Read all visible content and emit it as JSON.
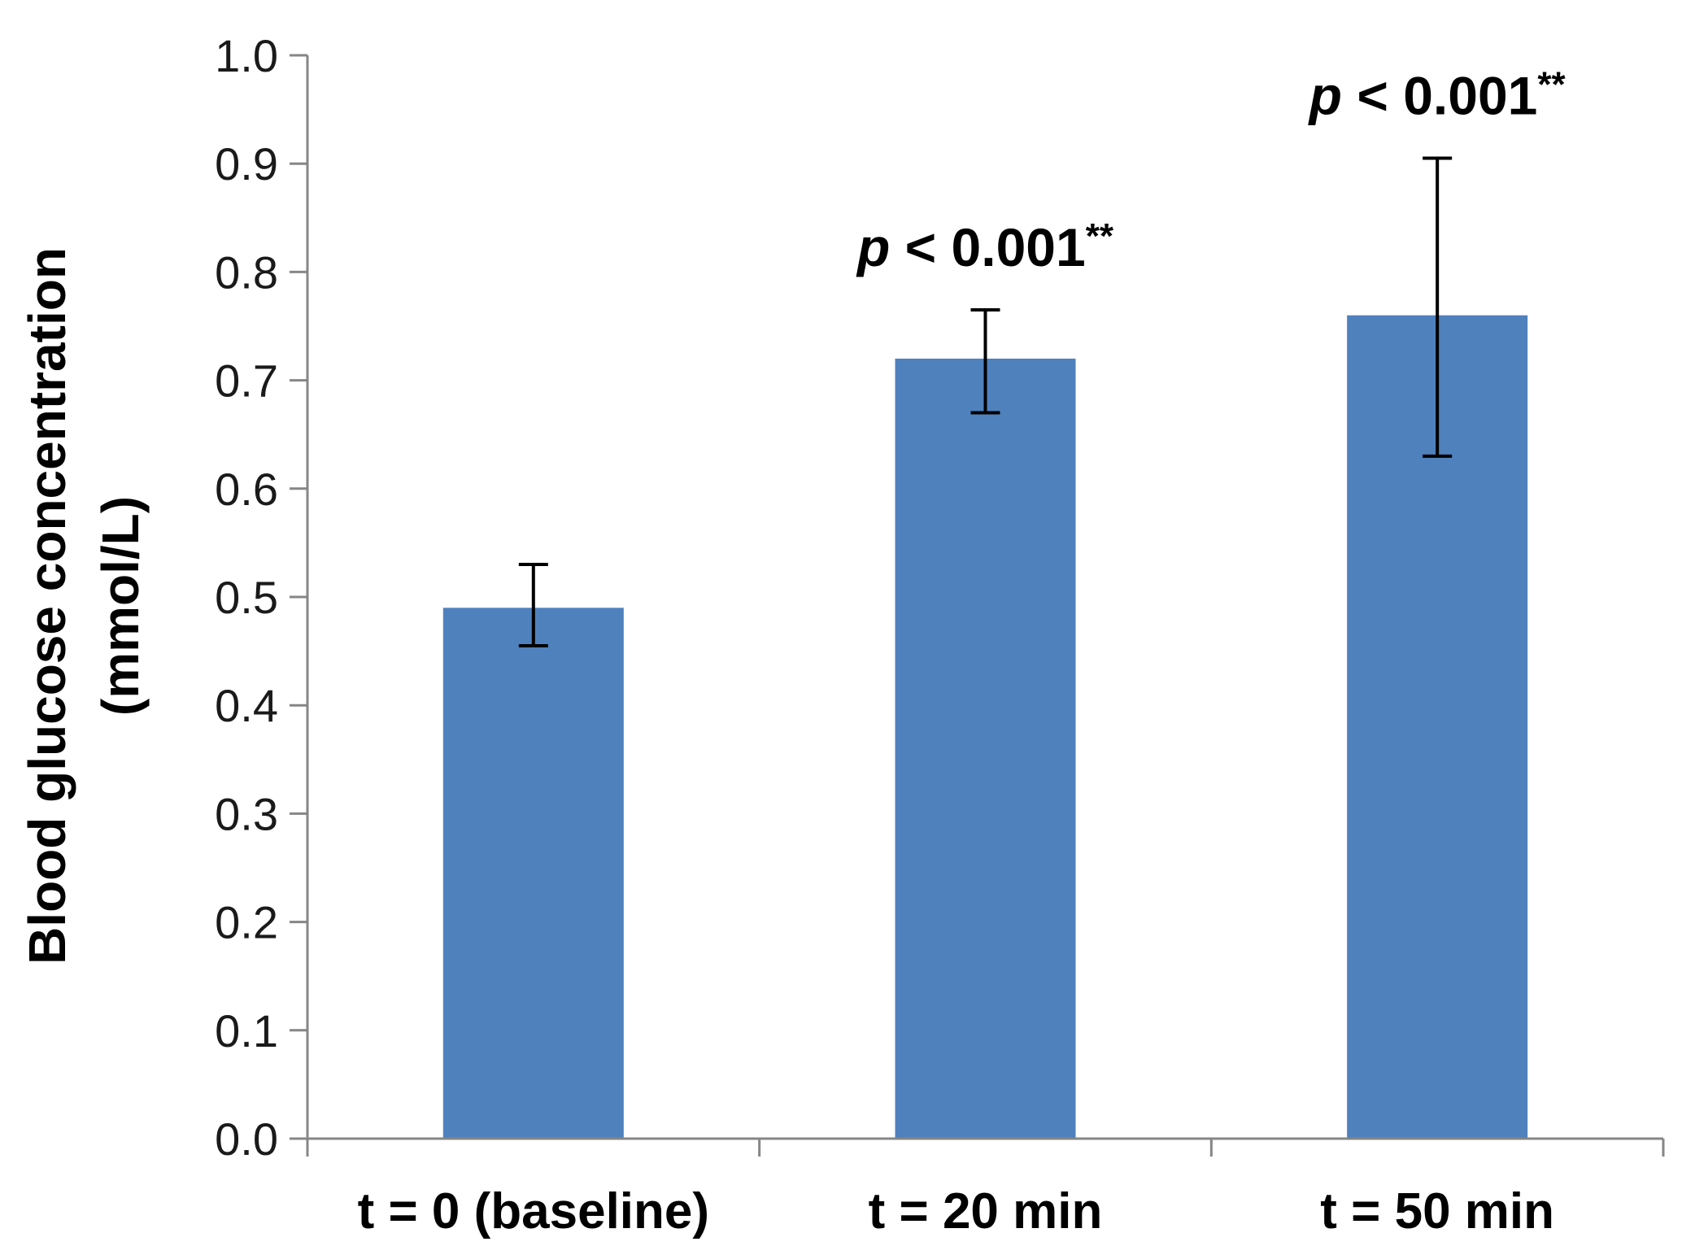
{
  "chart_data": {
    "type": "bar",
    "title": "",
    "xlabel": "",
    "ylabel_line1": "Blood glucose  concentration",
    "ylabel_line2": "(mmol/L)",
    "categories": [
      "t = 0 (baseline)",
      "t = 20 min",
      "t = 50 min"
    ],
    "values": [
      0.49,
      0.72,
      0.76
    ],
    "error_low": [
      0.455,
      0.67,
      0.63
    ],
    "error_high": [
      0.53,
      0.765,
      0.905
    ],
    "ylim": [
      0.0,
      1.0
    ],
    "yticks": [
      "0.0",
      "0.1",
      "0.2",
      "0.3",
      "0.4",
      "0.5",
      "0.6",
      "0.7",
      "0.8",
      "0.9",
      "1.0"
    ],
    "grid": false,
    "bar_color": "#4f81bd",
    "annotations": [
      {
        "category_index": 1,
        "p": "p",
        "text": " < 0.001",
        "stars": "**"
      },
      {
        "category_index": 2,
        "p": "p",
        "text": " < 0.001",
        "stars": "**"
      }
    ]
  }
}
